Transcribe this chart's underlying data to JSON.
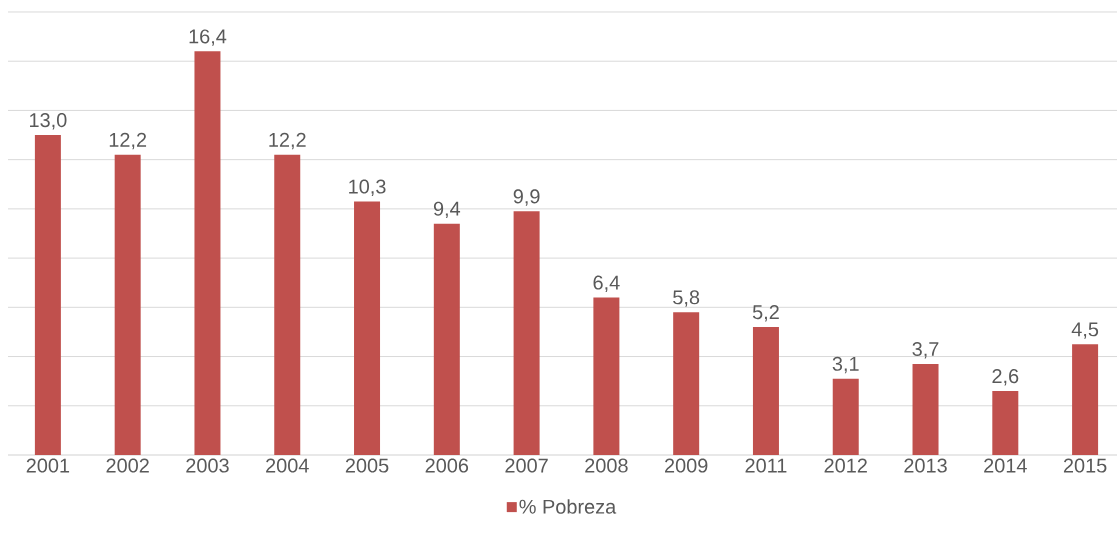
{
  "chart_data": {
    "type": "bar",
    "categories": [
      "2001",
      "2002",
      "2003",
      "2004",
      "2005",
      "2006",
      "2007",
      "2008",
      "2009",
      "2011",
      "2012",
      "2013",
      "2014",
      "2015"
    ],
    "series": [
      {
        "name": "% Pobreza",
        "color": "#c0504d",
        "values": [
          13.0,
          12.2,
          16.4,
          12.2,
          10.3,
          9.4,
          9.9,
          6.4,
          5.8,
          5.2,
          3.1,
          3.7,
          2.6,
          4.5
        ],
        "value_labels": [
          "13,0",
          "12,2",
          "16,4",
          "12,2",
          "10,3",
          "9,4",
          "9,9",
          "6,4",
          "5,8",
          "5,2",
          "3,1",
          "3,7",
          "2,6",
          "4,5"
        ]
      }
    ],
    "tick_labels": "x",
    "grid": "y",
    "legend": "bottom"
  }
}
